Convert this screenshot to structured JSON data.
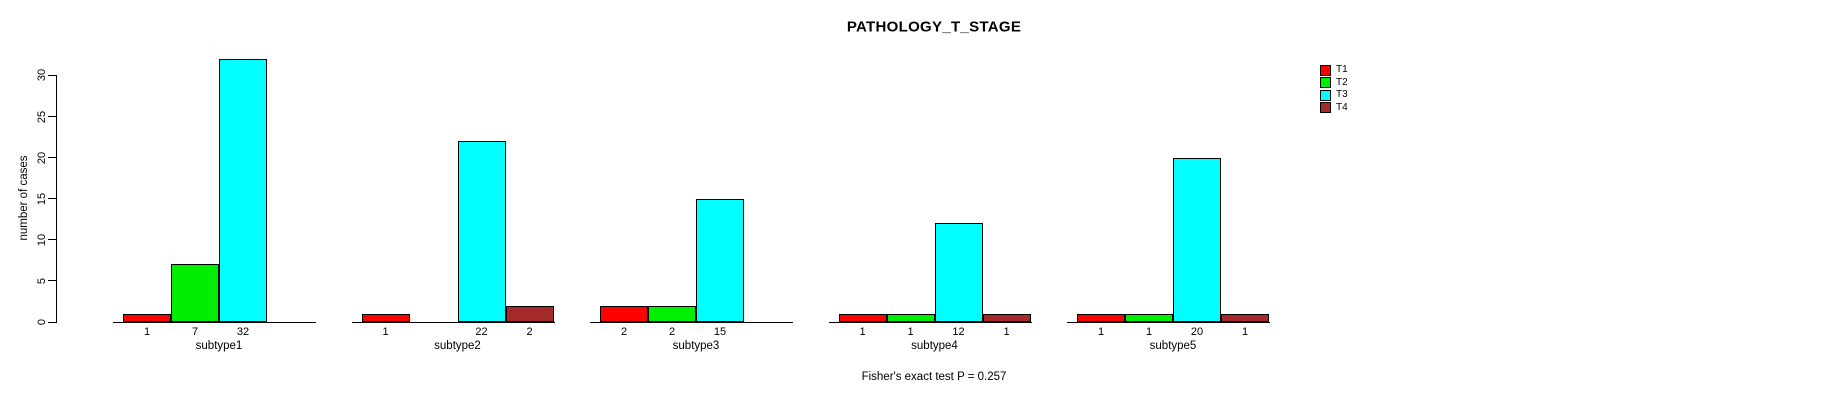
{
  "chart_data": {
    "type": "bar",
    "title": "PATHOLOGY_T_STAGE",
    "ylabel": "number of cases",
    "xlabel": "",
    "annotation": "Fisher's exact test P = 0.257",
    "categories": [
      "subtype1",
      "subtype2",
      "subtype3",
      "subtype4",
      "subtype5"
    ],
    "series": [
      {
        "name": "T1",
        "color": "#ff0000",
        "values": [
          1,
          1,
          2,
          1,
          1
        ]
      },
      {
        "name": "T2",
        "color": "#00ee00",
        "values": [
          7,
          0,
          2,
          1,
          1
        ]
      },
      {
        "name": "T3",
        "color": "#00ffff",
        "values": [
          32,
          22,
          15,
          12,
          20
        ]
      },
      {
        "name": "T4",
        "color": "#a52a2a",
        "values": [
          0,
          2,
          0,
          1,
          1
        ]
      }
    ],
    "yticks": [
      0,
      5,
      10,
      15,
      20,
      25,
      30
    ],
    "ylim": [
      0,
      32
    ],
    "grid": false,
    "bar_value_labels": true,
    "legend_position": "top-right",
    "background": "#ffffff"
  }
}
